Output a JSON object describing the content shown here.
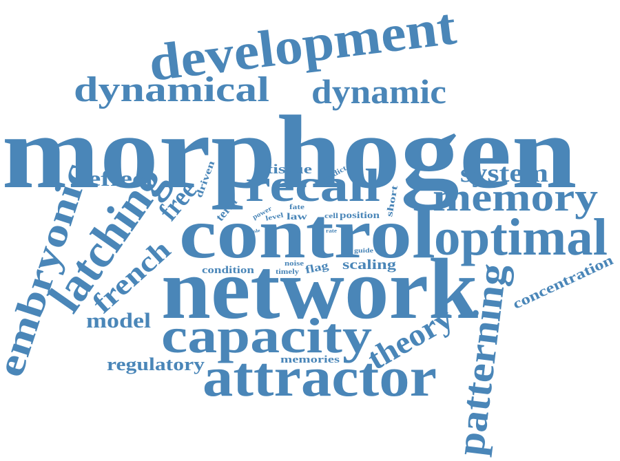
{
  "word_cloud": {
    "color": "#4a86b8",
    "words": [
      {
        "key": "morphogen",
        "text": "morphogen",
        "weight": 100
      },
      {
        "key": "network",
        "text": "network",
        "weight": 82
      },
      {
        "key": "control",
        "text": "control",
        "weight": 80
      },
      {
        "key": "development",
        "text": "development",
        "weight": 60
      },
      {
        "key": "attractor",
        "text": "attractor",
        "weight": 58
      },
      {
        "key": "capacity",
        "text": "capacity",
        "weight": 55
      },
      {
        "key": "recall",
        "text": "recall",
        "weight": 52
      },
      {
        "key": "optimal",
        "text": "optimal",
        "weight": 52
      },
      {
        "key": "latching",
        "text": "latching",
        "weight": 50
      },
      {
        "key": "memory",
        "text": "memory",
        "weight": 46
      },
      {
        "key": "patterning",
        "text": "patterning",
        "weight": 46
      },
      {
        "key": "embryonic",
        "text": "embryonic",
        "weight": 44
      },
      {
        "key": "dynamical",
        "text": "dynamical",
        "weight": 42
      },
      {
        "key": "dynamic",
        "text": "dynamic",
        "weight": 38
      },
      {
        "key": "theory",
        "text": "theory",
        "weight": 34
      },
      {
        "key": "french",
        "text": "french",
        "weight": 34
      },
      {
        "key": "system",
        "text": "system",
        "weight": 30
      },
      {
        "key": "free",
        "text": "free",
        "weight": 30
      },
      {
        "key": "effect",
        "text": "effect",
        "weight": 26
      },
      {
        "key": "model",
        "text": "model",
        "weight": 25
      },
      {
        "key": "regulatory",
        "text": "regulatory",
        "weight": 22
      },
      {
        "key": "concentration",
        "text": "concentration",
        "weight": 18
      },
      {
        "key": "scaling",
        "text": "scaling",
        "weight": 16
      },
      {
        "key": "tissue",
        "text": "tissue",
        "weight": 15
      },
      {
        "key": "term",
        "text": "term",
        "weight": 14
      },
      {
        "key": "flag",
        "text": "flag",
        "weight": 14
      },
      {
        "key": "condition",
        "text": "condition",
        "weight": 12
      },
      {
        "key": "memories",
        "text": "memories",
        "weight": 12
      },
      {
        "key": "position",
        "text": "position",
        "weight": 12
      },
      {
        "key": "driven",
        "text": "driven",
        "weight": 12
      },
      {
        "key": "law",
        "text": "law",
        "weight": 12
      },
      {
        "key": "short",
        "text": "short",
        "weight": 11
      },
      {
        "key": "cell",
        "text": "cell",
        "weight": 9
      },
      {
        "key": "predict",
        "text": "predict",
        "weight": 9
      },
      {
        "key": "noise",
        "text": "noise",
        "weight": 8
      },
      {
        "key": "timely",
        "text": "timely",
        "weight": 8
      },
      {
        "key": "level",
        "text": "level",
        "weight": 8
      },
      {
        "key": "fate",
        "text": "fate",
        "weight": 8
      },
      {
        "key": "power",
        "text": "power",
        "weight": 8
      },
      {
        "key": "guide",
        "text": "guide",
        "weight": 7
      },
      {
        "key": "rate",
        "text": "rate",
        "weight": 6
      },
      {
        "key": "role",
        "text": "role",
        "weight": 5
      }
    ]
  }
}
